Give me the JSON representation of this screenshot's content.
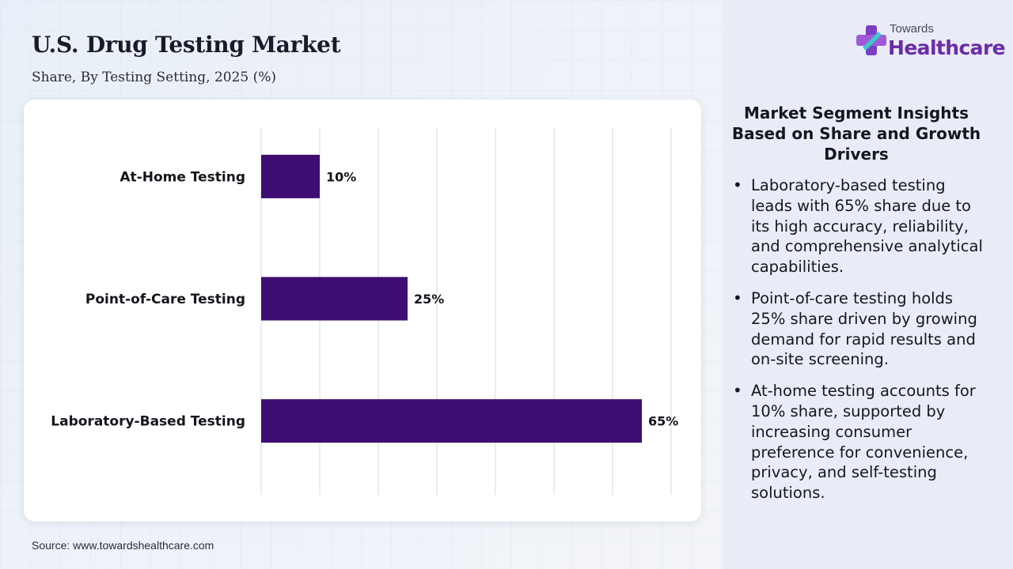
{
  "header": {
    "title": "U.S. Drug Testing Market",
    "subtitle": "Share, By Testing Setting, 2025 (%)"
  },
  "chart_data": {
    "type": "bar",
    "orientation": "horizontal",
    "categories": [
      "At-Home Testing",
      "Point-of-Care Testing",
      "Laboratory-Based Testing"
    ],
    "values": [
      10,
      25,
      65
    ],
    "value_labels": [
      "10%",
      "25%",
      "65%"
    ],
    "xlim": [
      0,
      70
    ],
    "grid": true,
    "bar_color": "#3d0d72"
  },
  "source": "Source: www.towardshealthcare.com",
  "logo": {
    "small": "Towards",
    "big": "Healthcare"
  },
  "insights": {
    "title": "Market Segment Insights Based on Share and Growth Drivers",
    "items": [
      "Laboratory-based testing leads with 65% share due to its high accuracy, reliability, and comprehensive analytical capabilities.",
      "Point-of-care testing holds 25% share driven by growing demand for rapid results and on-site screening.",
      "At-home testing accounts for 10% share, supported by increasing consumer preference for convenience, privacy, and self-testing solutions."
    ]
  },
  "colors": {
    "accent": "#6a2ca8",
    "bar": "#3d0d72",
    "panel": "#e9ecf6"
  }
}
